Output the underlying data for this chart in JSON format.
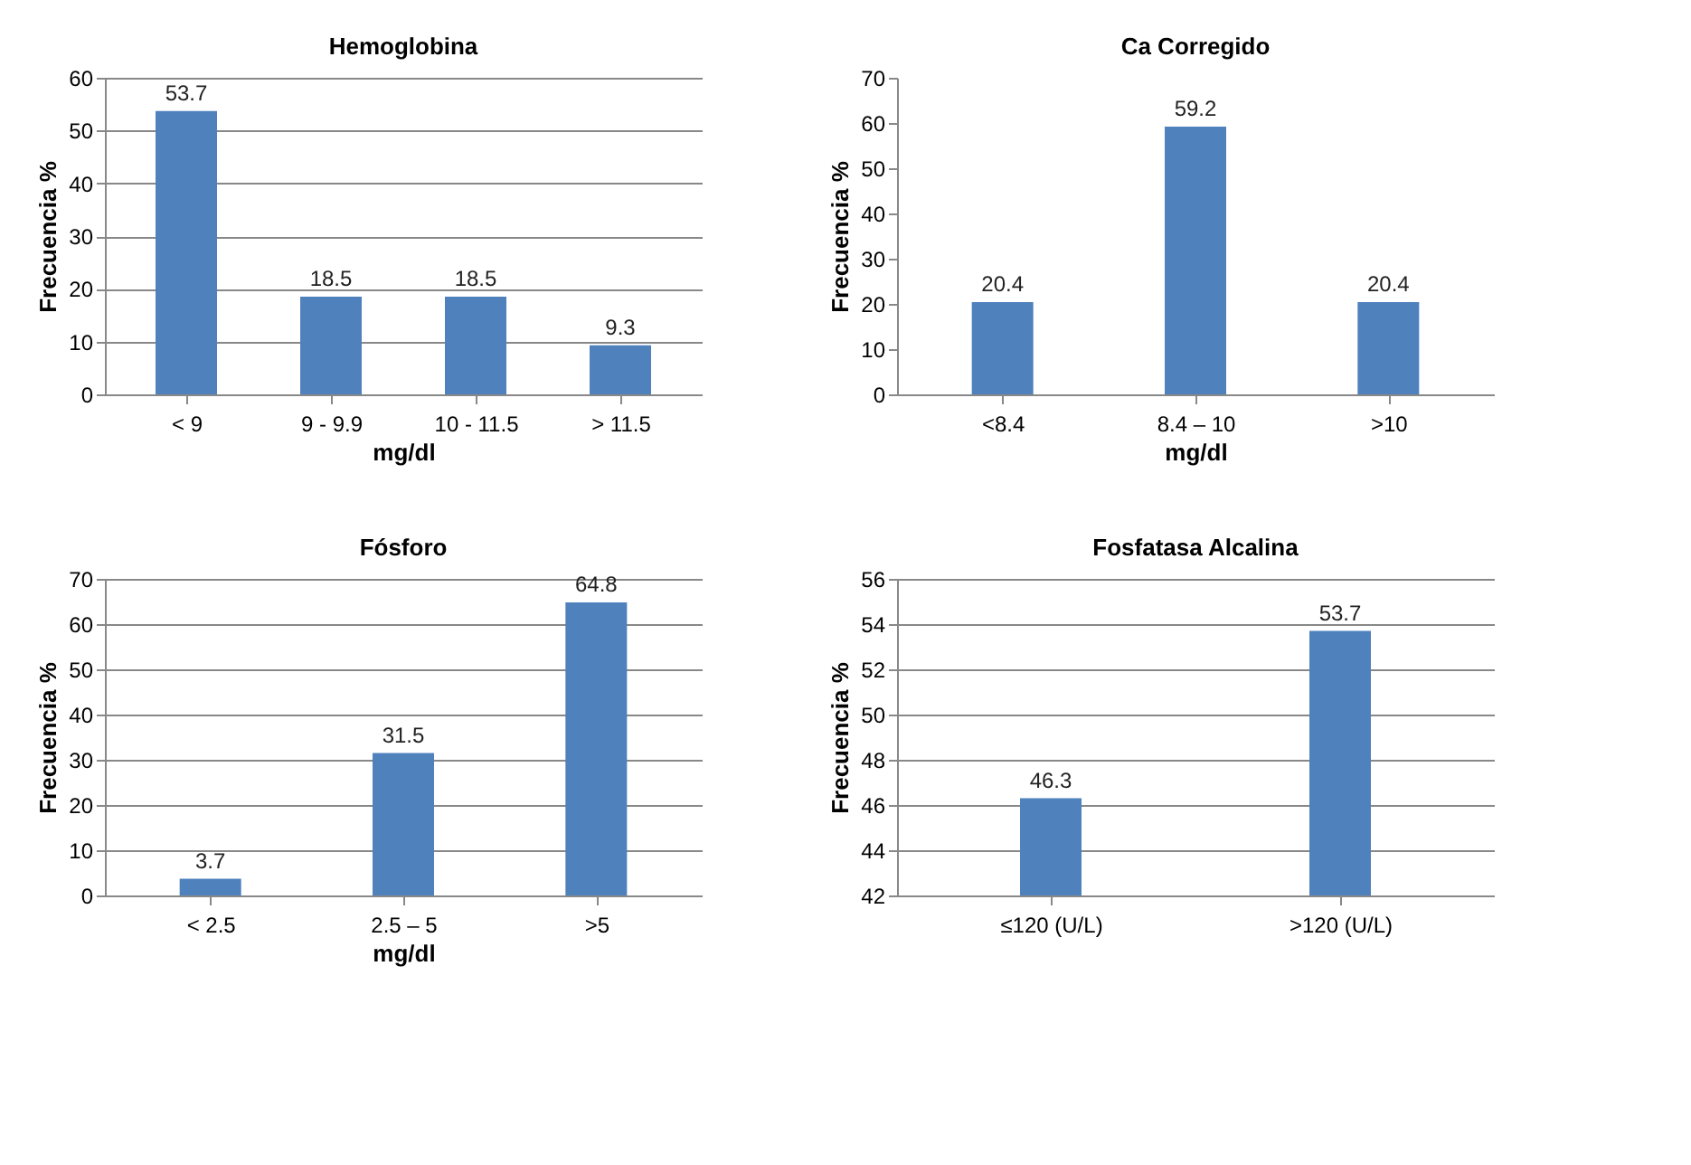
{
  "chart_data": [
    {
      "type": "bar",
      "title": "Hemoglobina",
      "xlabel": "mg/dl",
      "ylabel": "Frecuencia %",
      "categories": [
        "< 9",
        "9 - 9.9",
        "10 - 11.5",
        "> 11.5"
      ],
      "values": [
        53.7,
        18.5,
        18.5,
        9.3
      ],
      "color": "#4f81bd",
      "ylim": [
        0,
        60
      ],
      "yticks": [
        0,
        10,
        20,
        30,
        40,
        50,
        60
      ],
      "grid": "y",
      "data_labels": true
    },
    {
      "type": "bar",
      "title": "Ca Corregido",
      "xlabel": "mg/dl",
      "ylabel": "Frecuencia %",
      "categories": [
        "<8.4",
        "8.4 – 10",
        ">10"
      ],
      "values": [
        20.4,
        59.2,
        20.4
      ],
      "color": "#4f81bd",
      "ylim": [
        0,
        70
      ],
      "yticks": [
        0,
        10,
        20,
        30,
        40,
        50,
        60,
        70
      ],
      "grid": false,
      "data_labels": true
    },
    {
      "type": "bar",
      "title": "Fósforo",
      "xlabel": "mg/dl",
      "ylabel": "Frecuencia %",
      "categories": [
        "< 2.5",
        "2.5 – 5",
        ">5"
      ],
      "values": [
        3.7,
        31.5,
        64.8
      ],
      "color": "#4f81bd",
      "ylim": [
        0,
        70
      ],
      "yticks": [
        0,
        10,
        20,
        30,
        40,
        50,
        60,
        70
      ],
      "grid": "y",
      "data_labels": true
    },
    {
      "type": "bar",
      "title": "Fosfatasa Alcalina",
      "ylabel": "Frecuencia %",
      "categories": [
        "≤120 (U/L)",
        ">120 (U/L)"
      ],
      "values": [
        46.3,
        53.7
      ],
      "color": "#4f81bd",
      "ylim": [
        42,
        56
      ],
      "yticks": [
        42,
        44,
        46,
        48,
        50,
        52,
        54,
        56
      ],
      "grid": "y",
      "data_labels": true
    }
  ]
}
